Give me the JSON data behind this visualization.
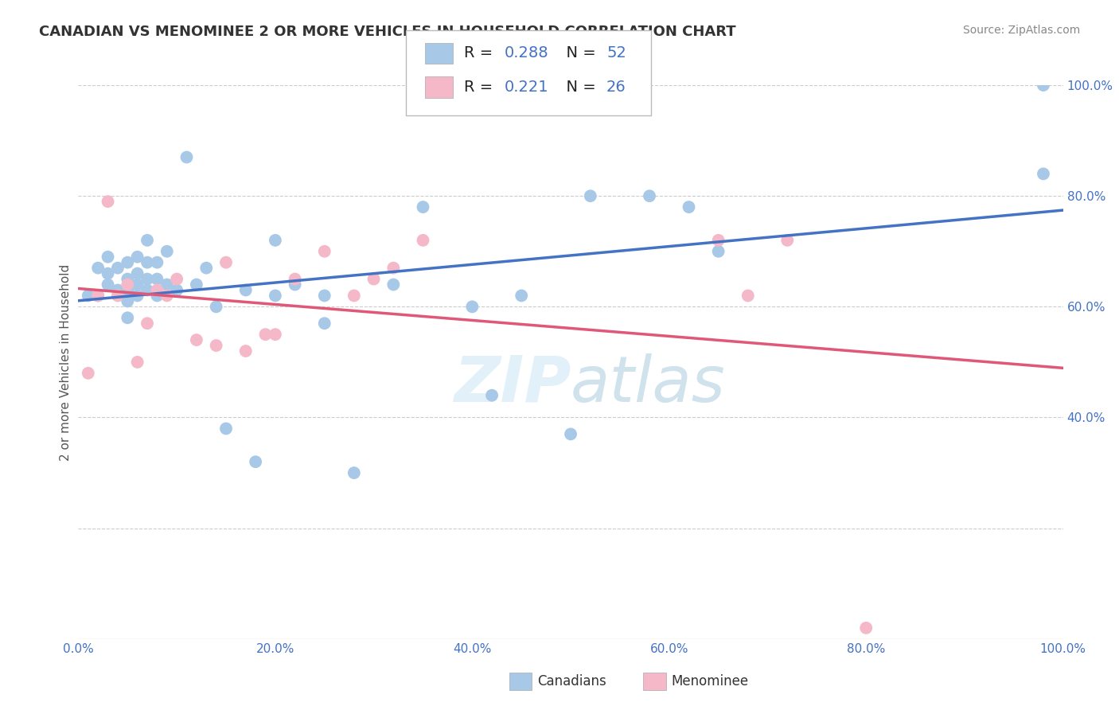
{
  "title": "CANADIAN VS MENOMINEE 2 OR MORE VEHICLES IN HOUSEHOLD CORRELATION CHART",
  "source": "Source: ZipAtlas.com",
  "ylabel": "2 or more Vehicles in Household",
  "xlim": [
    0,
    100
  ],
  "ylim": [
    0,
    100
  ],
  "canadian_R": "0.288",
  "canadian_N": "52",
  "menominee_R": "0.221",
  "menominee_N": "26",
  "canadian_color": "#a8c8e8",
  "menominee_color": "#f4b8c8",
  "canadian_line_color": "#4472c4",
  "menominee_line_color": "#e05878",
  "background_color": "#ffffff",
  "grid_color": "#cccccc",
  "stat_color": "#4472c4",
  "canadians_x": [
    1,
    2,
    2,
    3,
    3,
    3,
    4,
    4,
    5,
    5,
    5,
    5,
    5,
    6,
    6,
    6,
    6,
    7,
    7,
    7,
    7,
    8,
    8,
    8,
    9,
    9,
    10,
    11,
    12,
    13,
    14,
    15,
    17,
    18,
    20,
    20,
    22,
    25,
    25,
    28,
    32,
    35,
    40,
    42,
    45,
    50,
    52,
    58,
    62,
    65,
    98,
    98
  ],
  "canadians_y": [
    62,
    62,
    67,
    64,
    66,
    69,
    63,
    67,
    58,
    61,
    63,
    65,
    68,
    62,
    64,
    66,
    69,
    63,
    65,
    68,
    72,
    62,
    65,
    68,
    64,
    70,
    63,
    87,
    64,
    67,
    60,
    38,
    63,
    32,
    62,
    72,
    64,
    57,
    62,
    30,
    64,
    78,
    60,
    44,
    62,
    37,
    80,
    80,
    78,
    70,
    84,
    100
  ],
  "menominee_x": [
    1,
    2,
    3,
    4,
    5,
    6,
    7,
    8,
    9,
    10,
    12,
    14,
    15,
    17,
    19,
    20,
    22,
    25,
    28,
    30,
    32,
    35,
    65,
    68,
    72,
    80
  ],
  "menominee_y": [
    48,
    62,
    79,
    62,
    64,
    50,
    57,
    63,
    62,
    65,
    54,
    53,
    68,
    52,
    55,
    55,
    65,
    70,
    62,
    65,
    67,
    72,
    72,
    62,
    72,
    2
  ]
}
